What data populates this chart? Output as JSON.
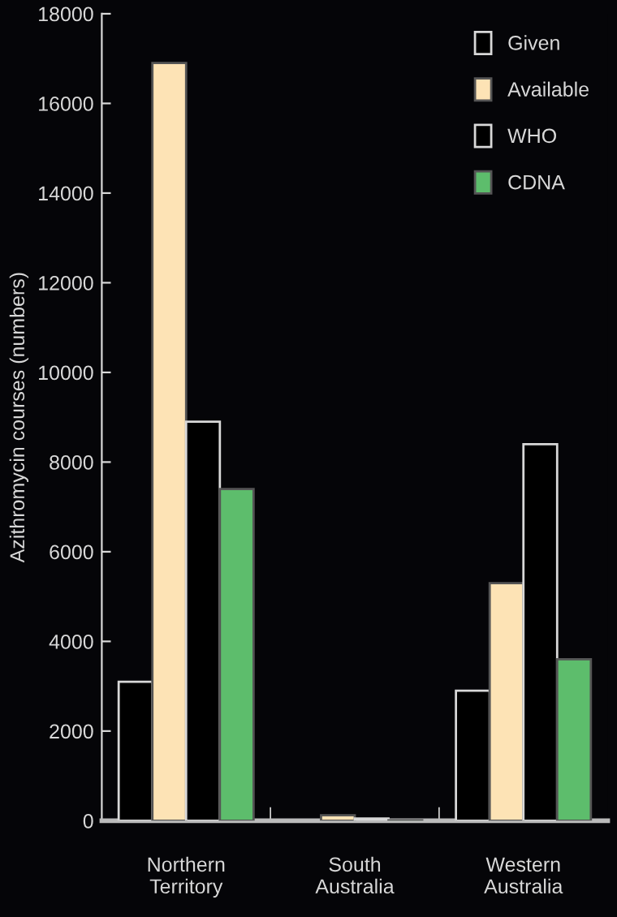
{
  "chart_data": {
    "type": "bar",
    "ylabel": "Azithromycin courses (numbers)",
    "categories": [
      "Northern\nTerritory",
      "South\nAustralia",
      "Western\nAustralia"
    ],
    "series": [
      {
        "name": "Given",
        "color": "#000000",
        "values": [
          3100,
          null,
          2900
        ]
      },
      {
        "name": "Available",
        "color": "#fde3b5",
        "values": [
          16900,
          120,
          5300
        ]
      },
      {
        "name": "WHO",
        "color": "#000000",
        "values": [
          8900,
          50,
          8400
        ]
      },
      {
        "name": "CDNA",
        "color": "#5dbd6c",
        "values": [
          7400,
          10,
          3600
        ]
      }
    ],
    "ylim": [
      0,
      18000
    ],
    "yticks": [
      0,
      2000,
      4000,
      6000,
      8000,
      10000,
      12000,
      14000,
      16000,
      18000
    ],
    "grid": false,
    "legend": "top right"
  }
}
